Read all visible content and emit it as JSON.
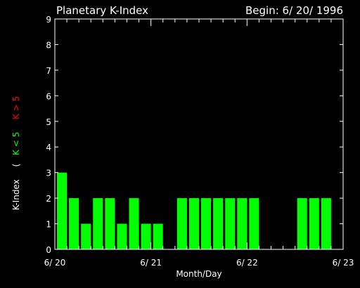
{
  "chart_data": {
    "type": "bar",
    "title": "Planetary K-Index",
    "subtitle": "Begin: 6/ 20/ 1996",
    "xlabel": "Month/Day",
    "ylabel": "K-Index",
    "legend": {
      "open": "(",
      "low_label": "K < 5",
      "high_label": "K > 5",
      "placement": "left-vertical"
    },
    "colors": {
      "background": "#000000",
      "axes": "#ffffff",
      "low": "#00ff00",
      "high": "#ff0000"
    },
    "ylim": [
      0,
      9
    ],
    "y_ticks": [
      "0",
      "1",
      "2",
      "3",
      "4",
      "5",
      "6",
      "7",
      "8",
      "9"
    ],
    "x_ticks": [
      {
        "label": "6/ 20",
        "day": 0
      },
      {
        "label": "6/ 21",
        "day": 1
      },
      {
        "label": "6/ 22",
        "day": 2
      },
      {
        "label": "6/ 23",
        "day": 3
      }
    ],
    "x_range_days": [
      0,
      3
    ],
    "interval_hours": 3,
    "values": [
      3,
      2,
      1,
      2,
      2,
      1,
      2,
      1,
      1,
      0,
      2,
      2,
      2,
      2,
      2,
      2,
      2,
      0,
      0,
      0,
      2,
      2,
      2,
      0
    ]
  }
}
